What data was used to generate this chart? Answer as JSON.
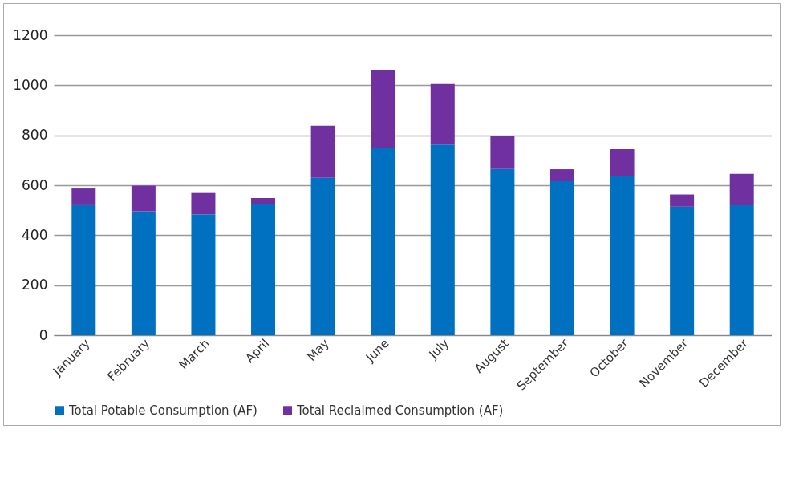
{
  "chart_data": {
    "type": "bar",
    "stacked": true,
    "categories": [
      "January",
      "February",
      "March",
      "April",
      "May",
      "June",
      "July",
      "August",
      "September",
      "October",
      "November",
      "December"
    ],
    "series": [
      {
        "name": "Total Potable Consumption (AF)",
        "color": "#0070c0",
        "values": [
          520,
          496,
          484,
          523,
          630,
          750,
          763,
          665,
          616,
          635,
          514,
          520
        ]
      },
      {
        "name": "Total Reclaimed Consumption (AF)",
        "color": "#7030a0",
        "values": [
          67,
          102,
          85,
          26,
          208,
          312,
          242,
          134,
          48,
          109,
          49,
          126
        ]
      }
    ],
    "ylim": [
      0,
      1200
    ],
    "yticks": [
      0,
      200,
      400,
      600,
      800,
      1000,
      1200
    ],
    "grid": "y",
    "legend": "bottom"
  }
}
